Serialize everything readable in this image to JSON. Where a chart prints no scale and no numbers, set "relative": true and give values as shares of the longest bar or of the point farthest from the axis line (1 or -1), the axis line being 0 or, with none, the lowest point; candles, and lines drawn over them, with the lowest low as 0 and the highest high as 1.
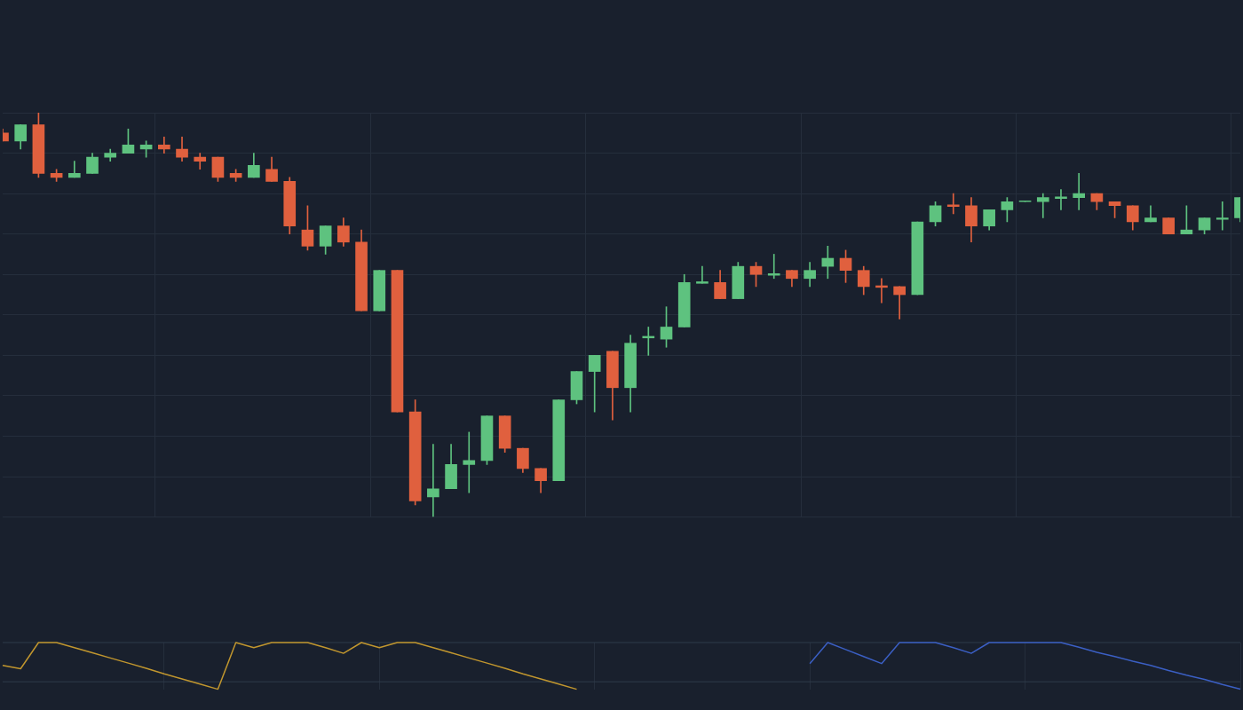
{
  "chart_data": [
    {
      "type": "candlestick",
      "relative": true,
      "grid": true,
      "legend": false,
      "categories": [
        null,
        null,
        null,
        null,
        null,
        null,
        null,
        null,
        null,
        null,
        null,
        null,
        null,
        null,
        null,
        null,
        null,
        null,
        null,
        null,
        null,
        null,
        null,
        null,
        null,
        null,
        null,
        null,
        null,
        null,
        null,
        null,
        null,
        null,
        null,
        null,
        null,
        null,
        null,
        null,
        null,
        null,
        null,
        null,
        null,
        null,
        null,
        null,
        null,
        null,
        null,
        null,
        null,
        null,
        null,
        null,
        null,
        null,
        null,
        null,
        null,
        null,
        null,
        null,
        null,
        null,
        null,
        null,
        null,
        null
      ],
      "ohlc": [
        [
          0.95,
          0.96,
          0.93,
          0.93
        ],
        [
          0.93,
          0.97,
          0.91,
          0.97
        ],
        [
          0.97,
          1.0,
          0.84,
          0.85
        ],
        [
          0.85,
          0.86,
          0.83,
          0.84
        ],
        [
          0.84,
          0.88,
          0.84,
          0.85
        ],
        [
          0.85,
          0.9,
          0.85,
          0.89
        ],
        [
          0.89,
          0.91,
          0.88,
          0.9
        ],
        [
          0.9,
          0.96,
          0.9,
          0.92
        ],
        [
          0.91,
          0.93,
          0.89,
          0.92
        ],
        [
          0.92,
          0.94,
          0.9,
          0.91
        ],
        [
          0.91,
          0.94,
          0.88,
          0.89
        ],
        [
          0.89,
          0.9,
          0.86,
          0.88
        ],
        [
          0.89,
          0.89,
          0.83,
          0.84
        ],
        [
          0.85,
          0.86,
          0.83,
          0.84
        ],
        [
          0.84,
          0.9,
          0.84,
          0.87
        ],
        [
          0.86,
          0.89,
          0.83,
          0.83
        ],
        [
          0.83,
          0.84,
          0.7,
          0.72
        ],
        [
          0.71,
          0.77,
          0.66,
          0.67
        ],
        [
          0.67,
          0.72,
          0.65,
          0.72
        ],
        [
          0.72,
          0.74,
          0.67,
          0.68
        ],
        [
          0.68,
          0.71,
          0.51,
          0.51
        ],
        [
          0.51,
          0.61,
          0.51,
          0.61
        ],
        [
          0.61,
          0.61,
          0.26,
          0.26
        ],
        [
          0.26,
          0.29,
          0.03,
          0.04
        ],
        [
          0.05,
          0.18,
          0.0,
          0.07
        ],
        [
          0.07,
          0.18,
          0.07,
          0.13
        ],
        [
          0.13,
          0.21,
          0.06,
          0.14
        ],
        [
          0.14,
          0.25,
          0.13,
          0.25
        ],
        [
          0.25,
          0.25,
          0.16,
          0.17
        ],
        [
          0.17,
          0.17,
          0.11,
          0.12
        ],
        [
          0.12,
          0.12,
          0.06,
          0.09
        ],
        [
          0.09,
          0.29,
          0.09,
          0.29
        ],
        [
          0.29,
          0.36,
          0.28,
          0.36
        ],
        [
          0.36,
          0.4,
          0.26,
          0.4
        ],
        [
          0.41,
          0.41,
          0.24,
          0.32
        ],
        [
          0.32,
          0.45,
          0.26,
          0.43
        ],
        [
          0.443,
          0.47,
          0.4,
          0.447
        ],
        [
          0.44,
          0.52,
          0.42,
          0.47
        ],
        [
          0.47,
          0.6,
          0.47,
          0.58
        ],
        [
          0.578,
          0.62,
          0.578,
          0.582
        ],
        [
          0.58,
          0.61,
          0.54,
          0.54
        ],
        [
          0.54,
          0.63,
          0.54,
          0.62
        ],
        [
          0.62,
          0.63,
          0.57,
          0.6
        ],
        [
          0.598,
          0.65,
          0.59,
          0.602
        ],
        [
          0.61,
          0.61,
          0.57,
          0.59
        ],
        [
          0.59,
          0.63,
          0.57,
          0.61
        ],
        [
          0.62,
          0.67,
          0.59,
          0.64
        ],
        [
          0.64,
          0.66,
          0.58,
          0.61
        ],
        [
          0.61,
          0.62,
          0.55,
          0.57
        ],
        [
          0.572,
          0.59,
          0.53,
          0.568
        ],
        [
          0.57,
          0.57,
          0.49,
          0.55
        ],
        [
          0.55,
          0.73,
          0.55,
          0.73
        ],
        [
          0.73,
          0.78,
          0.72,
          0.77
        ],
        [
          0.772,
          0.8,
          0.75,
          0.768
        ],
        [
          0.77,
          0.79,
          0.68,
          0.72
        ],
        [
          0.72,
          0.76,
          0.71,
          0.76
        ],
        [
          0.76,
          0.79,
          0.73,
          0.78
        ],
        [
          0.78,
          0.78,
          0.78,
          0.78
        ],
        [
          0.78,
          0.8,
          0.74,
          0.79
        ],
        [
          0.788,
          0.81,
          0.76,
          0.792
        ],
        [
          0.79,
          0.85,
          0.76,
          0.8
        ],
        [
          0.8,
          0.8,
          0.76,
          0.78
        ],
        [
          0.78,
          0.78,
          0.74,
          0.77
        ],
        [
          0.77,
          0.77,
          0.71,
          0.73
        ],
        [
          0.73,
          0.77,
          0.73,
          0.74
        ],
        [
          0.74,
          0.74,
          0.7,
          0.7
        ],
        [
          0.7,
          0.77,
          0.7,
          0.71
        ],
        [
          0.71,
          0.74,
          0.7,
          0.74
        ],
        [
          0.736,
          0.78,
          0.71,
          0.74
        ],
        [
          0.74,
          0.79,
          0.73,
          0.79
        ]
      ],
      "colors": [
        "#e0603e",
        "#5ec27f",
        "#e0603e",
        "#e0603e",
        "#5ec27f",
        "#5ec27f",
        "#5ec27f",
        "#5ec27f",
        "#5ec27f",
        "#e0603e",
        "#e0603e",
        "#e0603e",
        "#e0603e",
        "#e0603e",
        "#5ec27f",
        "#e0603e",
        "#e0603e",
        "#e0603e",
        "#5ec27f",
        "#e0603e",
        "#e0603e",
        "#5ec27f",
        "#e0603e",
        "#e0603e",
        "#5ec27f",
        "#5ec27f",
        "#5ec27f",
        "#5ec27f",
        "#e0603e",
        "#e0603e",
        "#e0603e",
        "#5ec27f",
        "#5ec27f",
        "#5ec27f",
        "#e0603e",
        "#5ec27f",
        "#5ec27f",
        "#5ec27f",
        "#5ec27f",
        "#5ec27f",
        "#e0603e",
        "#5ec27f",
        "#e0603e",
        "#5ec27f",
        "#e0603e",
        "#5ec27f",
        "#5ec27f",
        "#e0603e",
        "#e0603e",
        "#e0603e",
        "#e0603e",
        "#5ec27f",
        "#5ec27f",
        "#e0603e",
        "#e0603e",
        "#5ec27f",
        "#5ec27f",
        "#5ec27f",
        "#5ec27f",
        "#5ec27f",
        "#5ec27f",
        "#e0603e",
        "#e0603e",
        "#e0603e",
        "#5ec27f",
        "#e0603e",
        "#5ec27f",
        "#5ec27f",
        "#5ec27f",
        "#5ec27f"
      ]
    },
    {
      "type": "line",
      "relative": true,
      "grid": "x",
      "legend": false,
      "marker": "none",
      "categories": [
        null,
        null,
        null,
        null,
        null,
        null,
        null,
        null,
        null,
        null,
        null,
        null,
        null,
        null,
        null,
        null,
        null,
        null,
        null,
        null,
        null,
        null,
        null,
        null,
        null,
        null,
        null,
        null,
        null,
        null,
        null,
        null,
        null,
        null,
        null,
        null,
        null,
        null,
        null,
        null,
        null,
        null,
        null,
        null,
        null,
        null,
        null,
        null,
        null,
        null,
        null,
        null,
        null,
        null,
        null,
        null,
        null,
        null,
        null,
        null,
        null,
        null,
        null,
        null,
        null,
        null,
        null,
        null,
        null,
        null
      ],
      "series": [
        {
          "color": "#c1962e",
          "values": [
            0.51,
            0.44,
            1,
            1,
            0.89,
            0.78,
            0.67,
            0.56,
            0.45,
            0.33,
            0.22,
            0.11,
            0,
            1,
            0.89,
            1,
            1,
            1,
            0.89,
            0.77,
            1,
            0.89,
            1,
            1,
            0.89,
            0.78,
            0.67,
            0.56,
            0.45,
            0.33,
            0.22,
            0.11,
            0,
            null,
            null,
            null,
            null,
            null,
            null,
            null,
            null,
            null,
            null,
            null,
            null,
            null,
            null,
            null,
            null,
            null,
            null,
            null,
            null,
            null,
            null,
            null,
            null,
            null,
            null,
            null,
            null,
            null,
            null,
            null,
            null,
            null,
            null,
            null,
            null,
            null
          ]
        },
        {
          "color": "#3b5fc4",
          "values": [
            null,
            null,
            null,
            null,
            null,
            null,
            null,
            null,
            null,
            null,
            null,
            null,
            null,
            null,
            null,
            null,
            null,
            null,
            null,
            null,
            null,
            null,
            null,
            null,
            null,
            null,
            null,
            null,
            null,
            null,
            null,
            null,
            null,
            null,
            null,
            null,
            null,
            null,
            null,
            null,
            null,
            null,
            null,
            null,
            null,
            0.55,
            1,
            0.85,
            0.7,
            0.55,
            1,
            1,
            1,
            0.89,
            0.77,
            1,
            1,
            1,
            1,
            1,
            0.9,
            0.79,
            0.7,
            0.6,
            0.51,
            0.4,
            0.3,
            0.21,
            0.1,
            0
          ]
        }
      ],
      "ref_lines": [
        {
          "axis": "y",
          "value": 1,
          "color": "#2f3a4b"
        },
        {
          "axis": "y",
          "value": 0.16,
          "color": "#2f3a4b"
        }
      ]
    }
  ]
}
